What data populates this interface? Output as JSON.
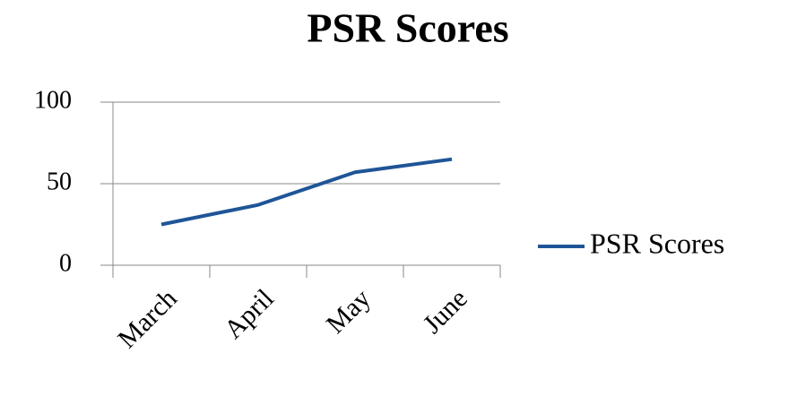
{
  "chart_data": {
    "type": "line",
    "title": "PSR Scores",
    "categories": [
      "March",
      "April",
      "May",
      "June"
    ],
    "series": [
      {
        "name": "PSR Scores",
        "color": "#1f5597",
        "values": [
          25,
          37,
          57,
          65
        ]
      }
    ],
    "ylim": [
      0,
      100
    ],
    "yticks": [
      0,
      50,
      100
    ],
    "grid": true,
    "legend": "right"
  }
}
